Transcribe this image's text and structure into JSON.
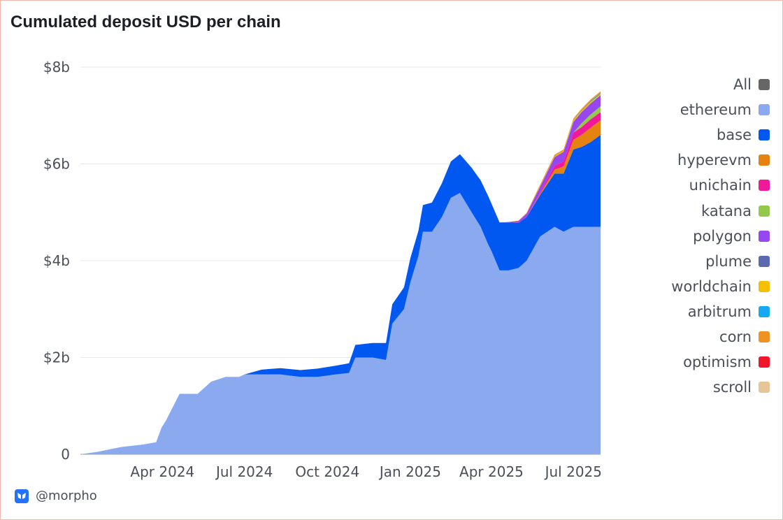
{
  "title": "Cumulated deposit USD per chain",
  "footer": {
    "handle": "@morpho",
    "logo_icon": "morpho-butterfly-icon"
  },
  "colors": {
    "all": "#666666",
    "ethereum": "#8aa9ee",
    "base": "#0058f0",
    "hyperevm": "#e6820f",
    "unichain": "#f2189a",
    "katana": "#93c94a",
    "polygon": "#9747ef",
    "plume": "#5a6ab0",
    "worldchain": "#f2c000",
    "arbitrum": "#16a8f0",
    "corn": "#ef9222",
    "optimism": "#f0172a",
    "scroll": "#e8c596",
    "grid": "#e6e8ec"
  },
  "chart_data": {
    "type": "area",
    "stacked": true,
    "title": "Cumulated deposit USD per chain",
    "xlabel": "",
    "ylabel": "",
    "y_unit": "billion USD",
    "xlim": [
      "2024-01-01",
      "2025-07-31"
    ],
    "ylim": [
      0,
      8
    ],
    "grid": true,
    "legend_position": "right",
    "x_ticks": [
      {
        "date": "2024-04-01",
        "label": "Apr 2024"
      },
      {
        "date": "2024-07-01",
        "label": "Jul 2024"
      },
      {
        "date": "2024-10-01",
        "label": "Oct 2024"
      },
      {
        "date": "2025-01-01",
        "label": "Jan 2025"
      },
      {
        "date": "2025-04-01",
        "label": "Apr 2025"
      },
      {
        "date": "2025-07-01",
        "label": "Jul 2025"
      }
    ],
    "y_ticks": [
      {
        "value": 0,
        "label": "0"
      },
      {
        "value": 2,
        "label": "$2b"
      },
      {
        "value": 4,
        "label": "$4b"
      },
      {
        "value": 6,
        "label": "$6b"
      },
      {
        "value": 8,
        "label": "$8b"
      }
    ],
    "legend": [
      "All",
      "ethereum",
      "base",
      "hyperevm",
      "unichain",
      "katana",
      "polygon",
      "plume",
      "worldchain",
      "arbitrum",
      "corn",
      "optimism",
      "scroll"
    ],
    "x": [
      "2024-01-01",
      "2024-01-20",
      "2024-02-15",
      "2024-03-10",
      "2024-03-25",
      "2024-03-31",
      "2024-04-05",
      "2024-04-20",
      "2024-05-10",
      "2024-05-25",
      "2024-06-10",
      "2024-06-25",
      "2024-07-01",
      "2024-07-20",
      "2024-08-10",
      "2024-09-01",
      "2024-09-20",
      "2024-10-10",
      "2024-10-25",
      "2024-11-01",
      "2024-11-20",
      "2024-12-05",
      "2024-12-12",
      "2024-12-25",
      "2025-01-01",
      "2025-01-10",
      "2025-01-15",
      "2025-01-25",
      "2025-02-05",
      "2025-02-15",
      "2025-02-25",
      "2025-03-10",
      "2025-03-20",
      "2025-03-28",
      "2025-04-01",
      "2025-04-10",
      "2025-04-20",
      "2025-05-01",
      "2025-05-10",
      "2025-05-25",
      "2025-06-10",
      "2025-06-20",
      "2025-07-01",
      "2025-07-10",
      "2025-07-20",
      "2025-07-31"
    ],
    "series": [
      {
        "name": "ethereum",
        "values": [
          0.0,
          0.05,
          0.15,
          0.2,
          0.25,
          0.55,
          0.7,
          1.25,
          1.25,
          1.5,
          1.6,
          1.6,
          1.65,
          1.65,
          1.65,
          1.6,
          1.6,
          1.65,
          1.68,
          2.0,
          2.0,
          1.95,
          2.7,
          3.0,
          3.55,
          4.1,
          4.6,
          4.6,
          4.9,
          5.3,
          5.4,
          5.0,
          4.7,
          4.35,
          4.2,
          3.8,
          3.8,
          3.85,
          4.0,
          4.5,
          4.7,
          4.6,
          4.7,
          4.7,
          4.7,
          4.7
        ]
      },
      {
        "name": "base",
        "values": [
          0.0,
          0.0,
          0.0,
          0.0,
          0.0,
          0.0,
          0.0,
          0.0,
          0.0,
          0.0,
          0.0,
          0.0,
          0.0,
          0.1,
          0.13,
          0.14,
          0.17,
          0.18,
          0.2,
          0.26,
          0.3,
          0.35,
          0.4,
          0.45,
          0.5,
          0.52,
          0.55,
          0.6,
          0.7,
          0.75,
          0.8,
          0.92,
          0.96,
          1.0,
          0.98,
          0.99,
          0.99,
          0.93,
          0.9,
          0.86,
          1.1,
          1.2,
          1.6,
          1.65,
          1.75,
          1.9
        ]
      },
      {
        "name": "hyperevm",
        "values": [
          0,
          0,
          0,
          0,
          0,
          0,
          0,
          0,
          0,
          0,
          0,
          0,
          0,
          0,
          0,
          0,
          0,
          0,
          0,
          0,
          0,
          0,
          0,
          0,
          0,
          0,
          0,
          0,
          0,
          0,
          0,
          0,
          0,
          0,
          0,
          0,
          0,
          0,
          0,
          0.02,
          0.08,
          0.15,
          0.2,
          0.25,
          0.3,
          0.3
        ]
      },
      {
        "name": "unichain",
        "values": [
          0,
          0,
          0,
          0,
          0,
          0,
          0,
          0,
          0,
          0,
          0,
          0,
          0,
          0,
          0,
          0,
          0,
          0,
          0,
          0,
          0,
          0,
          0,
          0,
          0,
          0,
          0,
          0,
          0,
          0,
          0,
          0,
          0,
          0,
          0,
          0,
          0,
          0,
          0,
          0.03,
          0.08,
          0.1,
          0.15,
          0.16,
          0.17,
          0.17
        ]
      },
      {
        "name": "katana",
        "values": [
          0,
          0,
          0,
          0,
          0,
          0,
          0,
          0,
          0,
          0,
          0,
          0,
          0,
          0,
          0,
          0,
          0,
          0,
          0,
          0,
          0,
          0,
          0,
          0,
          0,
          0,
          0,
          0,
          0,
          0,
          0,
          0,
          0,
          0,
          0,
          0,
          0,
          0,
          0,
          0,
          0,
          0,
          0,
          0.08,
          0.1,
          0.12
        ]
      },
      {
        "name": "polygon",
        "values": [
          0,
          0,
          0,
          0,
          0,
          0,
          0,
          0,
          0,
          0,
          0,
          0,
          0,
          0,
          0,
          0,
          0,
          0,
          0,
          0,
          0,
          0,
          0,
          0,
          0,
          0,
          0,
          0,
          0,
          0,
          0,
          0,
          0,
          0,
          0,
          0,
          0.01,
          0.04,
          0.07,
          0.12,
          0.18,
          0.2,
          0.22,
          0.23,
          0.23,
          0.23
        ]
      },
      {
        "name": "plume",
        "values": [
          0,
          0,
          0,
          0,
          0,
          0,
          0,
          0,
          0,
          0,
          0,
          0,
          0,
          0,
          0,
          0,
          0,
          0,
          0,
          0,
          0,
          0,
          0,
          0,
          0,
          0,
          0,
          0,
          0,
          0,
          0,
          0,
          0,
          0,
          0,
          0,
          0,
          0,
          0,
          0,
          0,
          0,
          0,
          0,
          0,
          0
        ]
      },
      {
        "name": "worldchain",
        "values": [
          0,
          0,
          0,
          0,
          0,
          0,
          0,
          0,
          0,
          0,
          0,
          0,
          0,
          0,
          0,
          0,
          0,
          0,
          0,
          0,
          0,
          0,
          0,
          0,
          0,
          0,
          0,
          0,
          0,
          0,
          0,
          0,
          0,
          0,
          0,
          0,
          0,
          0,
          0,
          0.01,
          0.02,
          0.02,
          0.03,
          0.03,
          0.03,
          0.03
        ]
      },
      {
        "name": "arbitrum",
        "values": [
          0,
          0,
          0,
          0,
          0,
          0,
          0,
          0,
          0,
          0,
          0,
          0,
          0,
          0,
          0,
          0,
          0,
          0,
          0,
          0,
          0,
          0,
          0,
          0,
          0,
          0,
          0,
          0,
          0,
          0,
          0,
          0,
          0,
          0,
          0,
          0,
          0,
          0,
          0,
          0,
          0,
          0,
          0.01,
          0.01,
          0.02,
          0.02
        ]
      },
      {
        "name": "corn",
        "values": [
          0,
          0,
          0,
          0,
          0,
          0,
          0,
          0,
          0,
          0,
          0,
          0,
          0,
          0,
          0,
          0,
          0,
          0,
          0,
          0,
          0,
          0,
          0,
          0,
          0,
          0,
          0,
          0,
          0,
          0,
          0,
          0,
          0,
          0,
          0,
          0,
          0,
          0.01,
          0.02,
          0.03,
          0.03,
          0.03,
          0.03,
          0.03,
          0.03,
          0.03
        ]
      },
      {
        "name": "optimism",
        "values": [
          0,
          0,
          0,
          0,
          0,
          0,
          0,
          0,
          0,
          0,
          0,
          0,
          0,
          0,
          0,
          0,
          0,
          0,
          0,
          0,
          0,
          0,
          0,
          0,
          0,
          0,
          0,
          0,
          0,
          0,
          0,
          0,
          0,
          0,
          0,
          0,
          0,
          0,
          0,
          0,
          0,
          0,
          0,
          0,
          0,
          0
        ]
      },
      {
        "name": "scroll",
        "values": [
          0,
          0,
          0,
          0,
          0,
          0,
          0,
          0,
          0,
          0,
          0,
          0,
          0,
          0,
          0,
          0,
          0,
          0,
          0,
          0,
          0,
          0,
          0,
          0,
          0,
          0,
          0,
          0,
          0,
          0,
          0,
          0,
          0,
          0,
          0,
          0,
          0,
          0,
          0,
          0,
          0,
          0,
          0,
          0,
          0,
          0
        ]
      }
    ]
  }
}
